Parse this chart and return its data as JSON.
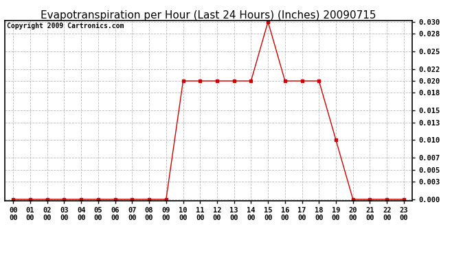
{
  "title": "Evapotranspiration per Hour (Last 24 Hours) (Inches) 20090715",
  "copyright": "Copyright 2009 Cartronics.com",
  "hours": [
    "00:00",
    "01:00",
    "02:00",
    "03:00",
    "04:00",
    "05:00",
    "06:00",
    "07:00",
    "08:00",
    "09:00",
    "10:00",
    "11:00",
    "12:00",
    "13:00",
    "14:00",
    "15:00",
    "16:00",
    "17:00",
    "18:00",
    "19:00",
    "20:00",
    "21:00",
    "22:00",
    "23:00"
  ],
  "values": [
    0.0,
    0.0,
    0.0,
    0.0,
    0.0,
    0.0,
    0.0,
    0.0,
    0.0,
    0.0,
    0.02,
    0.02,
    0.02,
    0.02,
    0.02,
    0.03,
    0.02,
    0.02,
    0.02,
    0.01,
    0.0,
    0.0,
    0.0,
    0.0
  ],
  "line_color": "#cc0000",
  "marker": "s",
  "marker_size": 2.5,
  "bg_color": "#ffffff",
  "plot_bg_color": "#ffffff",
  "grid_color": "#bbbbbb",
  "yticks": [
    0.0,
    0.003,
    0.005,
    0.007,
    0.01,
    0.013,
    0.015,
    0.018,
    0.02,
    0.022,
    0.025,
    0.028,
    0.03
  ],
  "ylim": [
    0.0,
    0.03
  ],
  "title_fontsize": 11,
  "copyright_fontsize": 7,
  "tick_fontsize": 7.5,
  "border_color": "#000000"
}
